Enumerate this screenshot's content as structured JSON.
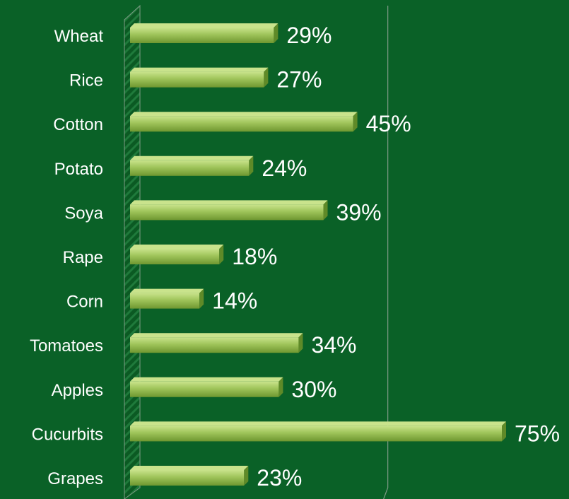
{
  "colors": {
    "background": "#0a6127",
    "bar_top": "#c9e38c",
    "bar_mid": "#9fc45a",
    "bar_bottom": "#6f9730",
    "bar_end_cap": "#5f8a28",
    "gridline": "#7f9a86",
    "label_text": "#ffffff"
  },
  "chart_data": {
    "type": "bar",
    "orientation": "horizontal",
    "style": "3d",
    "categories": [
      "Wheat",
      "Rice",
      "Cotton",
      "Potato",
      "Soya",
      "Rape",
      "Corn",
      "Tomatoes",
      "Apples",
      "Cucurbits",
      "Grapes"
    ],
    "values": [
      29,
      27,
      45,
      24,
      39,
      18,
      14,
      34,
      30,
      75,
      23
    ],
    "data_labels": [
      "29%",
      "27%",
      "45%",
      "24%",
      "39%",
      "18%",
      "14%",
      "34%",
      "30%",
      "75%",
      "23%"
    ],
    "unit": "%",
    "title": "",
    "xlabel": "",
    "ylabel": "",
    "xlim": [
      0,
      75
    ],
    "grid": true,
    "legend": "none"
  }
}
